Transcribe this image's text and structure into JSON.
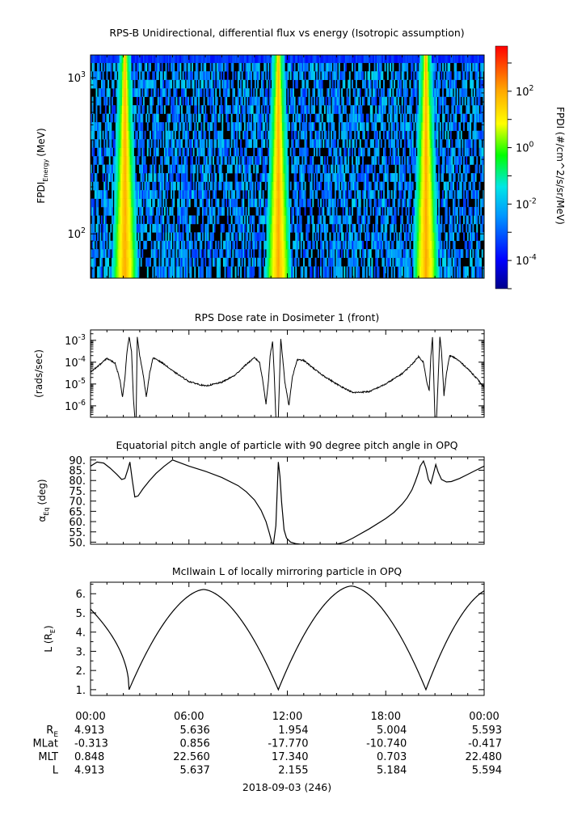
{
  "chart_data": [
    {
      "type": "heatmap",
      "title": "RPS-B  Unidirectional, differential flux vs energy (Isotropic assumption)",
      "ylabel_main": "FPDI",
      "ylabel_sub": "Energy",
      "ylabel_unit": "(MeV)",
      "y_scale": "log",
      "ylim": [
        52,
        1400
      ],
      "y_ticks": [
        {
          "v": 100,
          "base": "10",
          "exp": "2"
        },
        {
          "v": 1000,
          "base": "10",
          "exp": "3"
        }
      ],
      "energy_bins": [
        58,
        66,
        75,
        85,
        96,
        109,
        123,
        140,
        158,
        179,
        203,
        230,
        261,
        296,
        335,
        380,
        430,
        488,
        553,
        627,
        710,
        805,
        912,
        1034,
        1172,
        1330
      ],
      "x_range_hours": [
        0,
        24
      ],
      "belt_passes_hours": [
        2.1,
        11.45,
        20.45
      ],
      "colorbar": {
        "label": "FPDI (#/cm^2/s/sr/MeV)",
        "scale": "log",
        "range_log10": [
          -5,
          3.6
        ],
        "ticks": [
          {
            "v": -4,
            "base": "10",
            "exp": "-4"
          },
          {
            "v": -2,
            "base": "10",
            "exp": "-2"
          },
          {
            "v": 0,
            "base": "10",
            "exp": "0"
          },
          {
            "v": 2,
            "base": "10",
            "exp": "2"
          }
        ]
      }
    },
    {
      "type": "line",
      "title": "RPS  Dose rate in Dosimeter 1 (front)",
      "ylabel": "(rads/sec)",
      "y_scale": "log",
      "ylim": [
        3e-07,
        0.003
      ],
      "y_ticks": [
        {
          "v": 1e-06,
          "base": "10",
          "exp": "-6"
        },
        {
          "v": 1e-05,
          "base": "10",
          "exp": "-5"
        },
        {
          "v": 0.0001,
          "base": "10",
          "exp": "-4"
        },
        {
          "v": 0.001,
          "base": "10",
          "exp": "-3"
        }
      ],
      "x_hours": [
        0,
        0.5,
        1.0,
        1.5,
        1.8,
        1.95,
        2.1,
        2.2,
        2.35,
        2.5,
        2.62,
        2.7,
        2.78,
        2.85,
        3.0,
        3.2,
        3.4,
        3.6,
        3.8,
        4.0,
        4.5,
        5.0,
        6.0,
        7.0,
        8.0,
        8.8,
        9.5,
        10.0,
        10.3,
        10.5,
        10.7,
        10.85,
        10.95,
        11.1,
        11.2,
        11.3,
        11.45,
        11.6,
        11.7,
        11.85,
        12.1,
        12.3,
        12.6,
        13.0,
        13.5,
        14.0,
        15.0,
        16.0,
        17.0,
        18.0,
        19.0,
        19.6,
        20.0,
        20.3,
        20.5,
        20.65,
        20.75,
        20.85,
        21.0,
        21.1,
        21.3,
        21.4,
        21.55,
        21.7,
        21.9,
        22.2,
        22.5,
        23.0,
        23.5,
        24.0
      ],
      "y": [
        3.5e-05,
        7e-05,
        0.00015,
        9e-05,
        1.5e-05,
        2.5e-06,
        2e-05,
        0.0002,
        0.0015,
        0.0003,
        2e-06,
        3e-07,
        3e-07,
        0.0015,
        0.0002,
        3e-05,
        2.5e-06,
        3e-05,
        0.00015,
        0.00014,
        8e-05,
        4e-05,
        1.3e-05,
        8e-06,
        1.2e-05,
        2.5e-05,
        8e-05,
        0.00016,
        0.0001,
        1.5e-05,
        1.2e-06,
        1.5e-05,
        0.0002,
        0.0009,
        3e-05,
        3e-07,
        3e-07,
        0.0012,
        0.0002,
        1.2e-05,
        1e-06,
        2e-05,
        0.00013,
        0.00012,
        6e-05,
        3e-05,
        1e-05,
        4e-06,
        4.5e-06,
        1e-05,
        3e-05,
        8e-05,
        0.00018,
        0.0001,
        1.2e-05,
        5e-06,
        0.00018,
        0.0015,
        3e-07,
        3e-07,
        0.0015,
        0.0003,
        3e-06,
        3e-05,
        0.0002,
        0.00016,
        0.00011,
        5e-05,
        2e-05,
        7e-06
      ]
    },
    {
      "type": "line",
      "title": "Equatorial pitch angle of particle with 90 degree pitch angle in OPQ",
      "ylabel_main": "α",
      "ylabel_sub": "Eq",
      "ylabel_unit": "(deg)",
      "ylim": [
        49,
        91.5
      ],
      "y_ticks": [
        50,
        55,
        60,
        65,
        70,
        75,
        80,
        85,
        90
      ],
      "y_tick_labels": [
        "50.",
        "55.",
        "60.",
        "65.",
        "70.",
        "75.",
        "80.",
        "85.",
        "90."
      ],
      "x_hours": [
        0,
        0.4,
        0.8,
        1.2,
        1.6,
        1.9,
        2.1,
        2.3,
        2.4,
        2.55,
        2.7,
        2.9,
        3.2,
        3.6,
        4.0,
        4.5,
        5.0,
        6.0,
        7.0,
        8.0,
        9.0,
        9.5,
        10.0,
        10.4,
        10.7,
        10.9,
        11.05,
        11.15,
        11.3,
        11.45,
        11.55,
        11.65,
        11.8,
        11.95,
        12.2,
        12.5,
        12.8,
        13.0,
        15.0,
        15.5,
        16.0,
        17.0,
        18.0,
        18.5,
        19.0,
        19.3,
        19.6,
        19.8,
        20.0,
        20.1,
        20.3,
        20.45,
        20.6,
        20.75,
        20.9,
        21.05,
        21.2,
        21.4,
        21.7,
        22.0,
        22.5,
        23.0,
        23.5,
        24.0
      ],
      "y": [
        87,
        89,
        88.5,
        86,
        83,
        80.5,
        81,
        86,
        89,
        80,
        72,
        72.5,
        76,
        80,
        83.5,
        87,
        90,
        87,
        84.5,
        81.5,
        77.5,
        74.5,
        70.5,
        65.5,
        60,
        54.5,
        50,
        49,
        58,
        89,
        82,
        69.5,
        56,
        52,
        50,
        49.3,
        49,
        49,
        49,
        50,
        52,
        56.5,
        61.5,
        64.5,
        68.5,
        71.5,
        75.5,
        79.5,
        84,
        87,
        89.5,
        86,
        80.5,
        78.5,
        83,
        87.8,
        84,
        80.5,
        79.3,
        79.5,
        81,
        83,
        85,
        87
      ]
    },
    {
      "type": "line",
      "title": "McIlwain L of locally mirroring particle in OPQ",
      "ylabel_main": "L",
      "ylabel_sub": "E",
      "ylabel_pre": "L (R",
      "ylabel_post": ")",
      "ylim": [
        0.7,
        6.6
      ],
      "y_ticks": [
        1,
        2,
        3,
        4,
        5,
        6
      ],
      "y_tick_labels": [
        "1.",
        "2.",
        "3.",
        "4.",
        "5.",
        "6."
      ],
      "minima_hours": [
        2.35,
        11.45,
        20.45
      ],
      "maxima_hours": [
        6.9,
        15.9,
        24.5
      ],
      "maxima_values": [
        6.22,
        6.4,
        6.3
      ],
      "start_value": 5.2,
      "min_value": 1.0
    }
  ],
  "x_axis": {
    "time_labels": [
      "00:00",
      "06:00",
      "12:00",
      "18:00",
      "00:00"
    ],
    "date_label": "2018-09-03 (246)",
    "ephemeris": [
      {
        "name": "R",
        "sub": "E",
        "values": [
          "4.913",
          "5.636",
          "1.954",
          "5.004",
          "5.593"
        ]
      },
      {
        "name": "MLat",
        "sub": "",
        "values": [
          "-0.313",
          "0.856",
          "-17.770",
          "-10.740",
          "-0.417"
        ]
      },
      {
        "name": "MLT",
        "sub": "",
        "values": [
          "0.848",
          "22.560",
          "17.340",
          "0.703",
          "22.480"
        ]
      },
      {
        "name": "L",
        "sub": "",
        "values": [
          "4.913",
          "5.637",
          "2.155",
          "5.184",
          "5.594"
        ]
      }
    ]
  }
}
